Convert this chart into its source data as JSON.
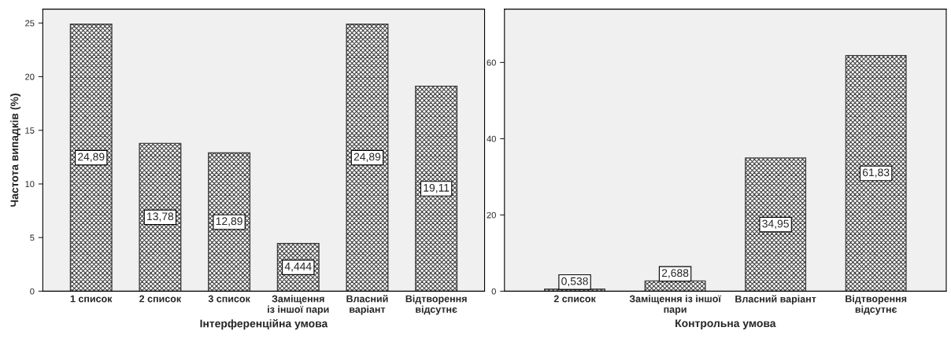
{
  "chart_data": [
    {
      "type": "bar",
      "xlabel": "Інтерференційна умова",
      "ylabel": "Частота випадків (%)",
      "categories": [
        "1 список",
        "2 список",
        "3 список",
        "Заміщення\nіз іншої пари",
        "Власний\nваріант",
        "Відтворення\nвідсутнє"
      ],
      "values": [
        24.89,
        13.78,
        12.89,
        4.444,
        24.89,
        19.11
      ],
      "value_labels": [
        "24,89",
        "13,78",
        "12,89",
        "4,444",
        "24,89",
        "19,11"
      ],
      "color": "#404040",
      "ylim": [
        0,
        26.3
      ],
      "yticks": [
        0,
        5,
        10,
        15,
        20,
        25
      ],
      "grid": false
    },
    {
      "type": "bar",
      "xlabel": "Контрольна умова",
      "categories": [
        "2 список",
        "Заміщення із іншої\nпари",
        "Власний варіант",
        "Відтворення\nвідсутнє"
      ],
      "values": [
        0.538,
        2.688,
        34.95,
        61.83
      ],
      "value_labels": [
        "0,538",
        "2,688",
        "34,95",
        "61,83"
      ],
      "color": "#404040",
      "ylim": [
        0,
        74
      ],
      "yticks": [
        0,
        20,
        40,
        60
      ],
      "grid": false
    }
  ]
}
